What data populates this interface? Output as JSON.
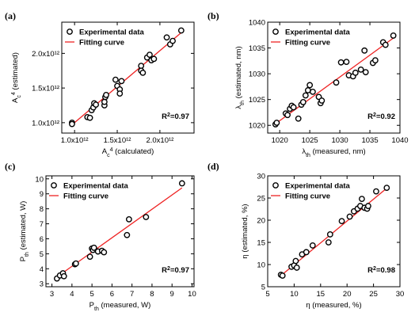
{
  "colors": {
    "points": "#000000",
    "fit": "#ee2222"
  },
  "chart_data": [
    {
      "id": "a",
      "type": "scatter",
      "panel_label": "(a)",
      "xlabel": {
        "main": "A",
        "sub": "c",
        "sup": "4",
        "tail": " (calculated)"
      },
      "ylabel": {
        "main": "A",
        "sub": "c",
        "sup": "4",
        "tail": " (estimated)"
      },
      "xlim": [
        0.85,
        2.4
      ],
      "ylim": [
        0.85,
        2.45
      ],
      "xticks": [
        1.0,
        1.5,
        2.0
      ],
      "xtick_labels": [
        "1.0x10¹²",
        "1.5x10¹²",
        "2.0x10¹²"
      ],
      "yticks": [
        1.0,
        1.5,
        2.0
      ],
      "ytick_labels": [
        "1.0x10¹²",
        "1.5x10¹²",
        "2.0x10¹²"
      ],
      "legend": {
        "points": "Experimental data",
        "fit": "Fitting curve",
        "position": "top-left"
      },
      "r2": {
        "label": "R",
        "sup": "2",
        "value": "=0.97"
      },
      "points": [
        [
          0.97,
          1.0
        ],
        [
          0.97,
          0.98
        ],
        [
          1.15,
          1.08
        ],
        [
          1.18,
          1.07
        ],
        [
          1.2,
          1.18
        ],
        [
          1.22,
          1.22
        ],
        [
          1.23,
          1.28
        ],
        [
          1.25,
          1.26
        ],
        [
          1.35,
          1.25
        ],
        [
          1.35,
          1.3
        ],
        [
          1.36,
          1.37
        ],
        [
          1.37,
          1.4
        ],
        [
          1.48,
          1.62
        ],
        [
          1.5,
          1.53
        ],
        [
          1.53,
          1.48
        ],
        [
          1.53,
          1.42
        ],
        [
          1.55,
          1.6
        ],
        [
          1.78,
          1.82
        ],
        [
          1.78,
          1.75
        ],
        [
          1.8,
          1.72
        ],
        [
          1.85,
          1.94
        ],
        [
          1.88,
          1.98
        ],
        [
          1.9,
          1.9
        ],
        [
          1.93,
          1.92
        ],
        [
          2.08,
          2.23
        ],
        [
          2.12,
          2.13
        ],
        [
          2.15,
          2.18
        ],
        [
          2.25,
          2.33
        ]
      ],
      "fit": [
        [
          0.97,
          0.97
        ],
        [
          2.28,
          2.33
        ]
      ]
    },
    {
      "id": "b",
      "type": "scatter",
      "panel_label": "(b)",
      "xlabel": {
        "main": "λ",
        "sub": "th",
        "sup": "",
        "tail": " (measured, nm)"
      },
      "ylabel": {
        "main": "λ",
        "sub": "th",
        "sup": "",
        "tail": " (estimated, nm)"
      },
      "xlim": [
        1018,
        1040
      ],
      "ylim": [
        1018.5,
        1040
      ],
      "xticks": [
        1020,
        1025,
        1030,
        1035,
        1040
      ],
      "xtick_labels": [
        "1020",
        "1025",
        "1030",
        "1035",
        "1040"
      ],
      "yticks": [
        1020,
        1025,
        1030,
        1035,
        1040
      ],
      "ytick_labels": [
        "1020",
        "1025",
        "1030",
        "1035",
        "1040"
      ],
      "legend": {
        "points": "Experimental data",
        "fit": "Fitting curve",
        "position": "top-left"
      },
      "r2": {
        "label": "R",
        "sup": "2",
        "value": "=0.92"
      },
      "points": [
        [
          1019.3,
          1020.2
        ],
        [
          1019.5,
          1020.5
        ],
        [
          1021,
          1022.3
        ],
        [
          1021.3,
          1022
        ],
        [
          1021.7,
          1023.2
        ],
        [
          1022,
          1023.8
        ],
        [
          1022.3,
          1023.5
        ],
        [
          1023.1,
          1021.3
        ],
        [
          1023.6,
          1024
        ],
        [
          1023.9,
          1024.5
        ],
        [
          1024.3,
          1025.8
        ],
        [
          1024.7,
          1026.8
        ],
        [
          1025,
          1027.8
        ],
        [
          1025.5,
          1026.5
        ],
        [
          1026.5,
          1025.5
        ],
        [
          1026.8,
          1024.3
        ],
        [
          1027,
          1024.8
        ],
        [
          1029.4,
          1028.3
        ],
        [
          1030.2,
          1032.2
        ],
        [
          1031.1,
          1032.3
        ],
        [
          1031.5,
          1029.7
        ],
        [
          1032.2,
          1029.5
        ],
        [
          1032.6,
          1030.2
        ],
        [
          1033.5,
          1030.8
        ],
        [
          1034.1,
          1034.5
        ],
        [
          1034.3,
          1030.3
        ],
        [
          1035.5,
          1032.1
        ],
        [
          1035.9,
          1032.6
        ],
        [
          1037.2,
          1036.1
        ],
        [
          1037.6,
          1035.6
        ],
        [
          1038.9,
          1037.4
        ]
      ],
      "fit": [
        [
          1019.3,
          1020.3
        ],
        [
          1039,
          1037
        ]
      ]
    },
    {
      "id": "c",
      "type": "scatter",
      "panel_label": "(c)",
      "xlabel": {
        "main": "P",
        "sub": "th",
        "sup": "",
        "tail": " (measured, W)"
      },
      "ylabel": {
        "main": "P",
        "sub": "th",
        "sup": "",
        "tail": " (estimated, W)"
      },
      "xlim": [
        2.7,
        10.1
      ],
      "ylim": [
        2.8,
        10.2
      ],
      "xticks": [
        3,
        4,
        5,
        6,
        7,
        8,
        9,
        10
      ],
      "xtick_labels": [
        "3",
        "4",
        "5",
        "6",
        "7",
        "8",
        "9",
        "10"
      ],
      "yticks": [
        3,
        4,
        5,
        6,
        7,
        8,
        9,
        10
      ],
      "ytick_labels": [
        "3",
        "4",
        "5",
        "6",
        "7",
        "8",
        "9",
        "10"
      ],
      "legend": {
        "points": "Experimental data",
        "fit": "Fitting curve",
        "position": "top-left"
      },
      "r2": {
        "label": "R",
        "sup": "2",
        "value": "=0.97"
      },
      "points": [
        [
          3.25,
          3.35
        ],
        [
          3.4,
          3.55
        ],
        [
          3.55,
          3.7
        ],
        [
          3.6,
          3.5
        ],
        [
          4.15,
          4.3
        ],
        [
          4.2,
          4.35
        ],
        [
          4.9,
          4.8
        ],
        [
          5.0,
          5.35
        ],
        [
          5.05,
          5.25
        ],
        [
          5.1,
          5.4
        ],
        [
          5.3,
          5.15
        ],
        [
          5.5,
          5.2
        ],
        [
          5.6,
          5.1
        ],
        [
          6.75,
          6.25
        ],
        [
          6.85,
          7.3
        ],
        [
          7.7,
          7.45
        ],
        [
          9.5,
          9.7
        ]
      ],
      "fit": [
        [
          3.2,
          3.4
        ],
        [
          9.5,
          9.4
        ]
      ]
    },
    {
      "id": "d",
      "type": "scatter",
      "panel_label": "(d)",
      "xlabel": {
        "main": "η",
        "sub": "",
        "sup": "",
        "tail": " (measured, %)"
      },
      "ylabel": {
        "main": "η",
        "sub": "",
        "sup": "",
        "tail": " (estimated, %)"
      },
      "xlim": [
        5,
        30
      ],
      "ylim": [
        5,
        30
      ],
      "xticks": [
        5,
        10,
        15,
        20,
        25,
        30
      ],
      "xtick_labels": [
        "5",
        "10",
        "15",
        "20",
        "25",
        "30"
      ],
      "yticks": [
        5,
        10,
        15,
        20,
        25,
        30
      ],
      "ytick_labels": [
        "5",
        "10",
        "15",
        "20",
        "25",
        "30"
      ],
      "legend": {
        "points": "Experimental data",
        "fit": "Fitting curve",
        "position": "top-left"
      },
      "r2": {
        "label": "R",
        "sup": "2",
        "value": "=0.98"
      },
      "points": [
        [
          7.5,
          7.7
        ],
        [
          7.8,
          7.5
        ],
        [
          9.5,
          9.5
        ],
        [
          10,
          9.8
        ],
        [
          10.3,
          10.8
        ],
        [
          10.5,
          9.3
        ],
        [
          11.5,
          12.3
        ],
        [
          12.3,
          12.8
        ],
        [
          13.5,
          14.3
        ],
        [
          16.5,
          15
        ],
        [
          16.8,
          16.8
        ],
        [
          19,
          19.8
        ],
        [
          20.5,
          20.8
        ],
        [
          21.3,
          22
        ],
        [
          22,
          22.6
        ],
        [
          22.5,
          23.2
        ],
        [
          22.8,
          24.8
        ],
        [
          23.3,
          22.8
        ],
        [
          23.8,
          22.6
        ],
        [
          24,
          23.2
        ],
        [
          25.5,
          26.5
        ],
        [
          27.5,
          27.3
        ]
      ],
      "fit": [
        [
          7.5,
          7.5
        ],
        [
          27.5,
          27.2
        ]
      ]
    }
  ]
}
